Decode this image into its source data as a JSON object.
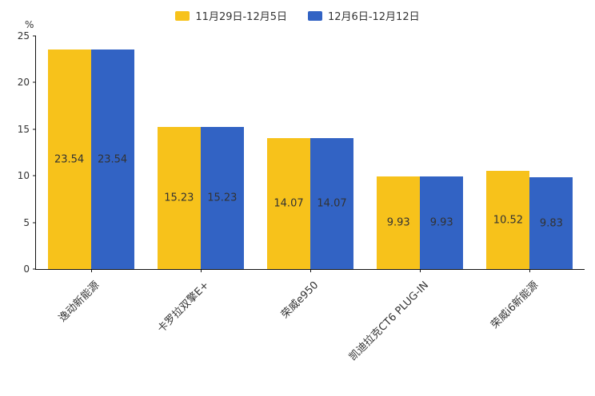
{
  "legend": {
    "items": [
      {
        "label": "11月29日-12月5日",
        "color": "#F7C21B"
      },
      {
        "label": "12月6日-12月12日",
        "color": "#3263C4"
      }
    ]
  },
  "chart_data": {
    "type": "bar",
    "title": "",
    "xlabel": "",
    "ylabel": "%",
    "ylim": [
      0,
      25
    ],
    "yticks": [
      0,
      5,
      10,
      15,
      20,
      25
    ],
    "grid": false,
    "legend_position": "top",
    "categories": [
      "逸动新能源",
      "卡罗拉双擎E+",
      "荣威e950",
      "凯迪拉克CT6 PLUG-IN",
      "荣威i6新能源"
    ],
    "series": [
      {
        "name": "11月29日-12月5日",
        "color": "#F7C21B",
        "values": [
          23.54,
          15.23,
          14.07,
          9.93,
          10.52
        ]
      },
      {
        "name": "12月6日-12月12日",
        "color": "#3263C4",
        "values": [
          23.54,
          15.23,
          14.07,
          9.93,
          9.83
        ]
      }
    ]
  }
}
